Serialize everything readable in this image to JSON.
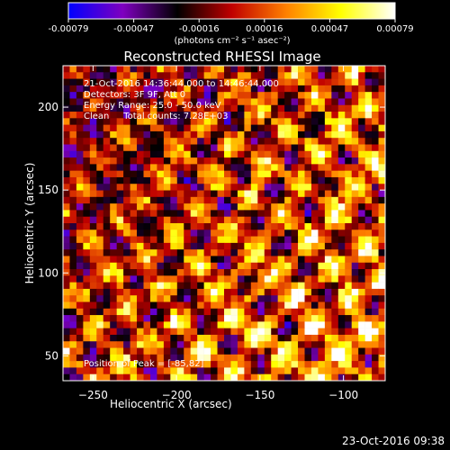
{
  "chart_data": {
    "type": "heatmap",
    "title": "Reconstructed RHESSI Image",
    "xlabel": "Heliocentric X (arcsec)",
    "ylabel": "Heliocentric Y (arcsec)",
    "xlim": [
      -268,
      -75
    ],
    "ylim": [
      35,
      225
    ],
    "x_ticks": [
      -250,
      -200,
      -150,
      -100
    ],
    "y_ticks": [
      50,
      100,
      150,
      200
    ],
    "colorbar": {
      "range": [
        -0.00079,
        0.00079
      ],
      "ticks": [
        "-0.00079",
        "-0.00047",
        "-0.00016",
        "0.00016",
        "0.00047",
        "0.00079"
      ],
      "units_label": "(photons cm⁻² s⁻¹ asec⁻²)",
      "colormap": [
        "#0000ff",
        "#7f00bf",
        "#000000",
        "#c00000",
        "#ff8000",
        "#ffff00",
        "#ffffff"
      ]
    },
    "info_lines": [
      "21-Oct-2016 14:36:44.000 to 14:46:44.000",
      "Detectors: 3F 9F, Att 0",
      "Energy Range: 25.0 - 50.0 keV",
      "Clean     Total counts: 7.28E+03"
    ],
    "peak_label": "Position of Peak = [-85,82]",
    "timestamp": "23-Oct-2016 09:38",
    "peak": {
      "x": -85,
      "y": 82
    },
    "grid": false,
    "legend": "none"
  }
}
